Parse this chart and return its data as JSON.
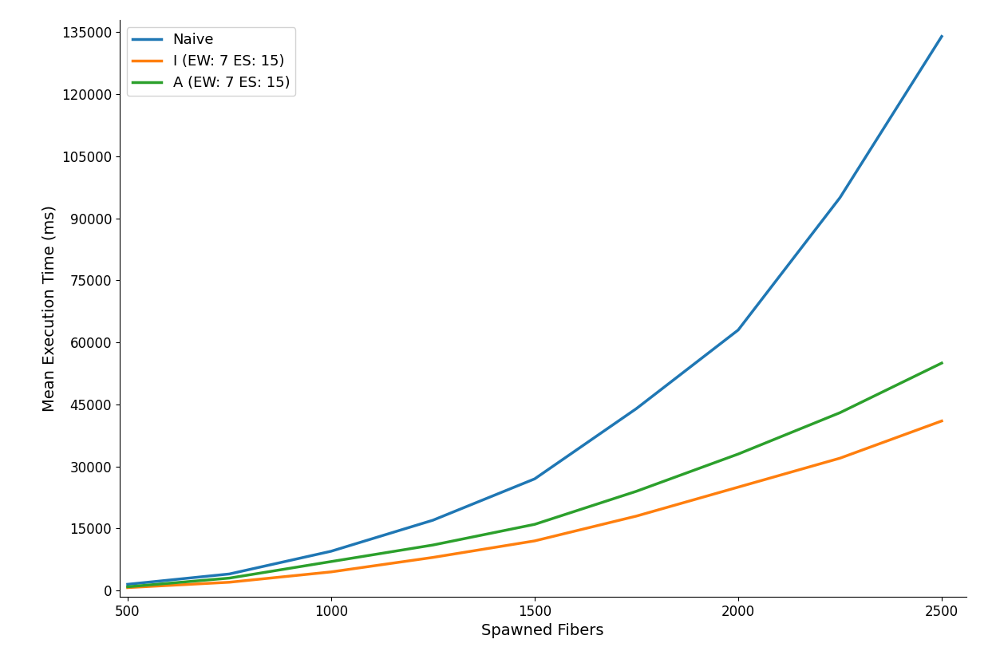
{
  "x": [
    500,
    750,
    1000,
    1250,
    1500,
    1750,
    2000,
    2250,
    2500
  ],
  "naive": [
    1500,
    4000,
    9500,
    17000,
    27000,
    44000,
    63000,
    95000,
    134000
  ],
  "i_ew7_es15": [
    700,
    2000,
    4500,
    8000,
    12000,
    18000,
    25000,
    32000,
    41000
  ],
  "a_ew7_es15": [
    900,
    3000,
    7000,
    11000,
    16000,
    24000,
    33000,
    43000,
    55000
  ],
  "naive_color": "#1f77b4",
  "i_color": "#ff7f0e",
  "a_color": "#2ca02c",
  "naive_label": "Naive",
  "i_label": "I (EW: 7 ES: 15)",
  "a_label": "A (EW: 7 ES: 15)",
  "xlabel": "Spawned Fibers",
  "ylabel": "Mean Execution Time (ms)",
  "xlim": [
    480,
    2560
  ],
  "ylim": [
    -1500,
    138000
  ],
  "yticks": [
    0,
    15000,
    30000,
    45000,
    60000,
    75000,
    90000,
    105000,
    120000,
    135000
  ],
  "xticks": [
    500,
    1000,
    1500,
    2000,
    2500
  ],
  "linewidth": 2.5,
  "legend_fontsize": 13,
  "axis_label_fontsize": 14,
  "tick_fontsize": 12
}
